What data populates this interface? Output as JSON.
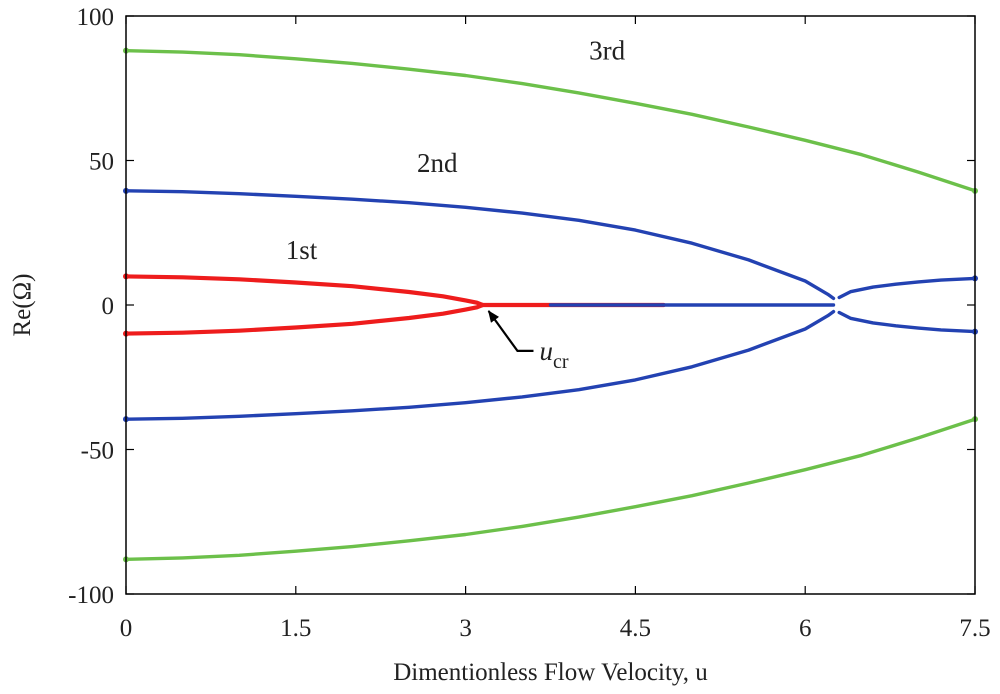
{
  "chart_data": {
    "type": "line",
    "title": "",
    "xlabel": "Dimentionless Flow Velocity, u",
    "ylabel": "Re(Ω)",
    "xlim": [
      0,
      7.5
    ],
    "ylim": [
      -100,
      100
    ],
    "grid": false,
    "legend": "none",
    "xticks": [
      "0",
      "1.5",
      "3",
      "4.5",
      "6",
      "7.5"
    ],
    "yticks": [
      "100",
      "50",
      "0",
      "-50",
      "-100"
    ],
    "series": [
      {
        "name": "1st",
        "color": "#ee1c1c",
        "branches": [
          {
            "x": [
              0,
              0.5,
              1.0,
              1.5,
              2.0,
              2.5,
              2.8,
              3.0,
              3.1,
              3.15
            ],
            "y": [
              9.9,
              9.6,
              8.9,
              7.8,
              6.5,
              4.5,
              3.0,
              1.6,
              0.8,
              0
            ]
          },
          {
            "x": [
              0,
              0.5,
              1.0,
              1.5,
              2.0,
              2.5,
              2.8,
              3.0,
              3.1,
              3.15
            ],
            "y": [
              -9.9,
              -9.6,
              -8.9,
              -7.8,
              -6.5,
              -4.5,
              -3.0,
              -1.6,
              -0.8,
              0
            ]
          },
          {
            "x": [
              3.15,
              4.75
            ],
            "y": [
              0,
              0
            ]
          }
        ]
      },
      {
        "name": "2nd",
        "color": "#2342b2",
        "branches": [
          {
            "x": [
              0,
              0.5,
              1.0,
              1.5,
              2.0,
              2.5,
              3.0,
              3.5,
              4.0,
              4.5,
              5.0,
              5.5,
              6.0,
              6.2,
              6.25
            ],
            "y": [
              39.5,
              39.2,
              38.5,
              37.6,
              36.6,
              35.4,
              33.8,
              31.8,
              29.3,
              25.9,
              21.4,
              15.6,
              8.3,
              3.7,
              2.3
            ]
          },
          {
            "x": [
              0,
              0.5,
              1.0,
              1.5,
              2.0,
              2.5,
              3.0,
              3.5,
              4.0,
              4.5,
              5.0,
              5.5,
              6.0,
              6.2,
              6.25
            ],
            "y": [
              -39.5,
              -39.2,
              -38.5,
              -37.6,
              -36.6,
              -35.4,
              -33.8,
              -31.8,
              -29.3,
              -25.9,
              -21.4,
              -15.6,
              -8.3,
              -3.7,
              -2.3
            ]
          },
          {
            "x": [
              3.75,
              6.25
            ],
            "y": [
              0,
              0
            ]
          },
          {
            "x": [
              6.3,
              6.4,
              6.6,
              6.8,
              7.0,
              7.2,
              7.5
            ],
            "y": [
              2.6,
              4.6,
              6.2,
              7.2,
              8.0,
              8.6,
              9.2
            ]
          },
          {
            "x": [
              6.3,
              6.4,
              6.6,
              6.8,
              7.0,
              7.2,
              7.5
            ],
            "y": [
              -2.6,
              -4.6,
              -6.2,
              -7.2,
              -8.0,
              -8.6,
              -9.2
            ]
          }
        ]
      },
      {
        "name": "3rd",
        "color": "#6cc04a",
        "branches": [
          {
            "x": [
              0,
              0.5,
              1.0,
              1.5,
              2.0,
              2.5,
              3.0,
              3.5,
              4.0,
              4.5,
              5.0,
              5.5,
              6.0,
              6.5,
              7.0,
              7.5
            ],
            "y": [
              88.0,
              87.5,
              86.6,
              85.2,
              83.6,
              81.6,
              79.4,
              76.6,
              73.4,
              69.8,
              66.0,
              61.6,
              57.0,
              52.0,
              46.0,
              39.5
            ]
          },
          {
            "x": [
              0,
              0.5,
              1.0,
              1.5,
              2.0,
              2.5,
              3.0,
              3.5,
              4.0,
              4.5,
              5.0,
              5.5,
              6.0,
              6.5,
              7.0,
              7.5
            ],
            "y": [
              -88.0,
              -87.5,
              -86.6,
              -85.2,
              -83.6,
              -81.6,
              -79.4,
              -76.6,
              -73.4,
              -69.8,
              -66.0,
              -61.6,
              -57.0,
              -52.0,
              -46.0,
              -39.5
            ]
          }
        ]
      }
    ],
    "series_labels": [
      {
        "text": "1st",
        "x": 1.55,
        "y": 16
      },
      {
        "text": "2nd",
        "x": 2.75,
        "y": 46
      },
      {
        "text": "3rd",
        "x": 4.25,
        "y": 85
      }
    ],
    "annotations": [
      {
        "text": "u",
        "subscript": "cr",
        "x": 3.9,
        "y": -19,
        "arrow_to": {
          "x": 3.15,
          "y": 0
        }
      }
    ]
  }
}
